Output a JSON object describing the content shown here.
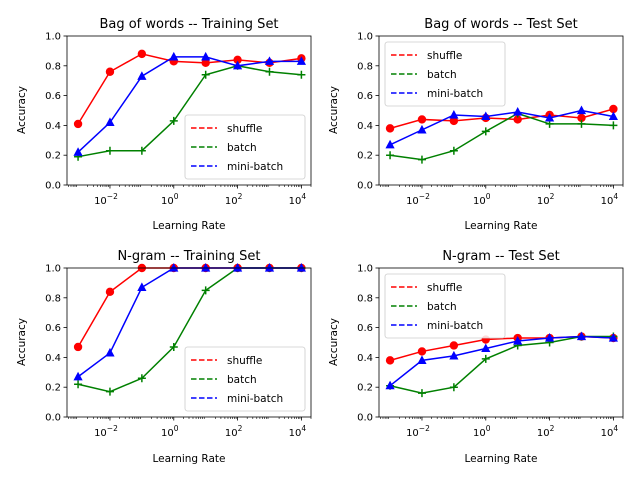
{
  "colors": {
    "shuffle": "#ff0000",
    "batch": "#008000",
    "mini-batch": "#0000ff"
  },
  "chart_data": [
    {
      "type": "line",
      "title": "Bag of words -- Training Set",
      "xlabel": "Learning Rate",
      "ylabel": "Accuracy",
      "xscale": "log",
      "xticks": [
        "10^-2",
        "10^0",
        "10^2",
        "10^4"
      ],
      "yticks": [
        "0.0",
        "0.2",
        "0.4",
        "0.6",
        "0.8",
        "1.0"
      ],
      "ylim": [
        0,
        1
      ],
      "legend_position": "lower-right",
      "x": [
        0.001,
        0.01,
        0.1,
        1,
        10,
        100,
        1000,
        10000
      ],
      "series": [
        {
          "name": "shuffle",
          "color": "#ff0000",
          "marker": "circle",
          "values": [
            0.41,
            0.76,
            0.88,
            0.83,
            0.82,
            0.84,
            0.82,
            0.85
          ]
        },
        {
          "name": "batch",
          "color": "#008000",
          "marker": "plus",
          "values": [
            0.19,
            0.23,
            0.23,
            0.43,
            0.74,
            0.8,
            0.76,
            0.74
          ]
        },
        {
          "name": "mini-batch",
          "color": "#0000ff",
          "marker": "triangle",
          "values": [
            0.22,
            0.42,
            0.73,
            0.86,
            0.86,
            0.8,
            0.83,
            0.83
          ]
        }
      ]
    },
    {
      "type": "line",
      "title": "Bag of words -- Test Set",
      "xlabel": "Learning Rate",
      "ylabel": "Accuracy",
      "xscale": "log",
      "xticks": [
        "10^-2",
        "10^0",
        "10^2",
        "10^4"
      ],
      "yticks": [
        "0.0",
        "0.2",
        "0.4",
        "0.6",
        "0.8",
        "1.0"
      ],
      "ylim": [
        0,
        1
      ],
      "legend_position": "upper-left",
      "x": [
        0.001,
        0.01,
        0.1,
        1,
        10,
        100,
        1000,
        10000
      ],
      "series": [
        {
          "name": "shuffle",
          "color": "#ff0000",
          "marker": "circle",
          "values": [
            0.38,
            0.44,
            0.43,
            0.45,
            0.44,
            0.47,
            0.45,
            0.51
          ]
        },
        {
          "name": "batch",
          "color": "#008000",
          "marker": "plus",
          "values": [
            0.2,
            0.17,
            0.23,
            0.36,
            0.48,
            0.41,
            0.41,
            0.4
          ]
        },
        {
          "name": "mini-batch",
          "color": "#0000ff",
          "marker": "triangle",
          "values": [
            0.27,
            0.37,
            0.47,
            0.46,
            0.49,
            0.45,
            0.5,
            0.46
          ]
        }
      ]
    },
    {
      "type": "line",
      "title": "N-gram -- Training Set",
      "xlabel": "Learning Rate",
      "ylabel": "Accuracy",
      "xscale": "log",
      "xticks": [
        "10^-2",
        "10^0",
        "10^2",
        "10^4"
      ],
      "yticks": [
        "0.0",
        "0.2",
        "0.4",
        "0.6",
        "0.8",
        "1.0"
      ],
      "ylim": [
        0,
        1
      ],
      "legend_position": "lower-right",
      "x": [
        0.001,
        0.01,
        0.1,
        1,
        10,
        100,
        1000,
        10000
      ],
      "series": [
        {
          "name": "shuffle",
          "color": "#ff0000",
          "marker": "circle",
          "values": [
            0.47,
            0.84,
            1.0,
            1.0,
            1.0,
            1.0,
            1.0,
            1.0
          ]
        },
        {
          "name": "batch",
          "color": "#008000",
          "marker": "plus",
          "values": [
            0.22,
            0.17,
            0.26,
            0.47,
            0.85,
            1.0,
            1.0,
            1.0
          ]
        },
        {
          "name": "mini-batch",
          "color": "#0000ff",
          "marker": "triangle",
          "values": [
            0.27,
            0.43,
            0.87,
            1.0,
            1.0,
            1.0,
            1.0,
            1.0
          ]
        }
      ]
    },
    {
      "type": "line",
      "title": "N-gram -- Test Set",
      "xlabel": "Learning Rate",
      "ylabel": "Accuracy",
      "xscale": "log",
      "xticks": [
        "10^-2",
        "10^0",
        "10^2",
        "10^4"
      ],
      "yticks": [
        "0.0",
        "0.2",
        "0.4",
        "0.6",
        "0.8",
        "1.0"
      ],
      "ylim": [
        0,
        1
      ],
      "legend_position": "upper-left",
      "x": [
        0.001,
        0.01,
        0.1,
        1,
        10,
        100,
        1000,
        10000
      ],
      "series": [
        {
          "name": "shuffle",
          "color": "#ff0000",
          "marker": "circle",
          "values": [
            0.38,
            0.44,
            0.48,
            0.52,
            0.53,
            0.53,
            0.54,
            0.53
          ]
        },
        {
          "name": "batch",
          "color": "#008000",
          "marker": "plus",
          "values": [
            0.21,
            0.16,
            0.2,
            0.39,
            0.48,
            0.5,
            0.54,
            0.54
          ]
        },
        {
          "name": "mini-batch",
          "color": "#0000ff",
          "marker": "triangle",
          "values": [
            0.21,
            0.38,
            0.41,
            0.46,
            0.51,
            0.53,
            0.54,
            0.53
          ]
        }
      ]
    }
  ]
}
